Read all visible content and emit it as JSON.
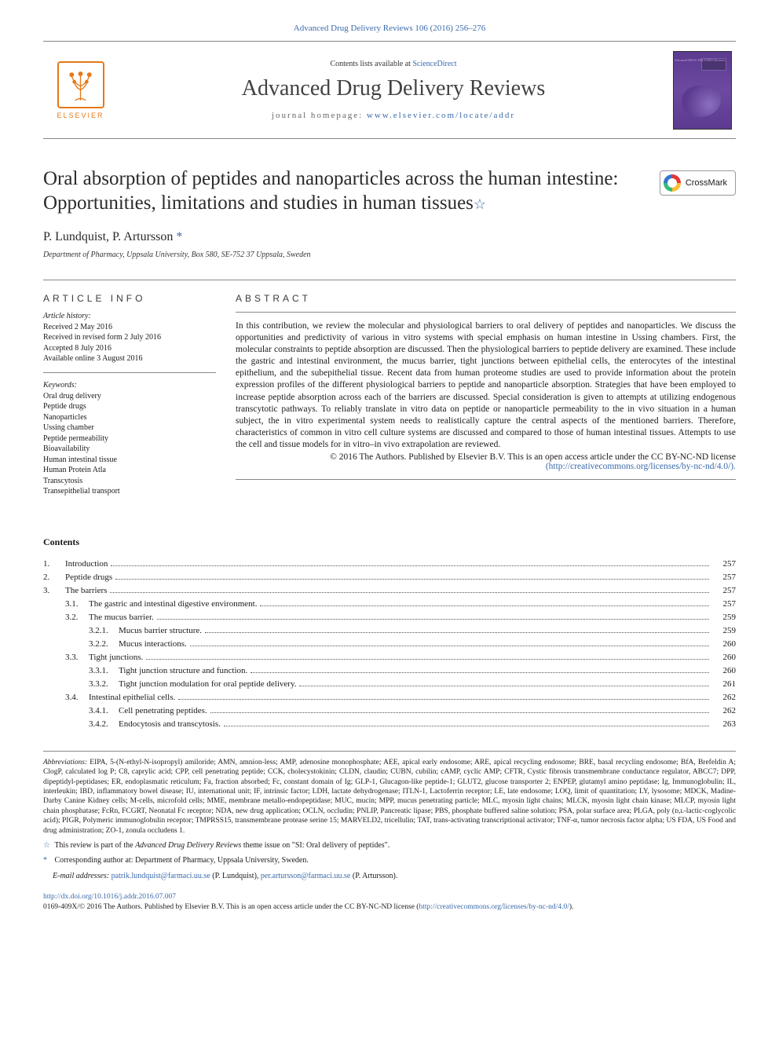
{
  "top_link": {
    "journal": "Advanced Drug Delivery Reviews",
    "vol": "106 (2016) 256–276"
  },
  "banner": {
    "contents_prefix": "Contents lists available at ",
    "sciencedirect": "ScienceDirect",
    "journal_name": "Advanced Drug Delivery Reviews",
    "homepage_prefix": "journal homepage: ",
    "homepage_url": "www.elsevier.com/locate/addr",
    "elsevier_label": "ELSEVIER",
    "cover_label": "Advanced DRUG DELIVERY Reviews"
  },
  "crossmark_label": "CrossMark",
  "title": "Oral absorption of peptides and nanoparticles across the human intestine: Opportunities, limitations and studies in human tissues",
  "title_star": "☆",
  "authors": "P. Lundquist, P. Artursson ",
  "corr_mark": "*",
  "affiliation": "Department of Pharmacy, Uppsala University, Box 580, SE-752 37 Uppsala, Sweden",
  "article_info_head": "ARTICLE INFO",
  "abstract_head": "ABSTRACT",
  "history": {
    "label": "Article history:",
    "lines": [
      "Received 2 May 2016",
      "Received in revised form 2 July 2016",
      "Accepted 8 July 2016",
      "Available online 3 August 2016"
    ]
  },
  "keywords": {
    "label": "Keywords:",
    "items": [
      "Oral drug delivery",
      "Peptide drugs",
      "Nanoparticles",
      "Ussing chamber",
      "Peptide permeability",
      "Bioavailability",
      "Human intestinal tissue",
      "Human Protein Atla",
      "Transcytosis",
      "Transepithelial transport"
    ]
  },
  "abstract": "In this contribution, we review the molecular and physiological barriers to oral delivery of peptides and nanoparticles. We discuss the opportunities and predictivity of various in vitro systems with special emphasis on human intestine in Ussing chambers. First, the molecular constraints to peptide absorption are discussed. Then the physiological barriers to peptide delivery are examined. These include the gastric and intestinal environment, the mucus barrier, tight junctions between epithelial cells, the enterocytes of the intestinal epithelium, and the subepithelial tissue. Recent data from human proteome studies are used to provide information about the protein expression profiles of the different physiological barriers to peptide and nanoparticle absorption. Strategies that have been employed to increase peptide absorption across each of the barriers are discussed. Special consideration is given to attempts at utilizing endogenous transcytotic pathways. To reliably translate in vitro data on peptide or nanoparticle permeability to the in vivo situation in a human subject, the in vitro experimental system needs to realistically capture the central aspects of the mentioned barriers. Therefore, characteristics of common in vitro cell culture systems are discussed and compared to those of human intestinal tissues. Attempts to use the cell and tissue models for in vitro–in vivo extrapolation are reviewed.",
  "copyright": {
    "line1": "© 2016 The Authors. Published by Elsevier B.V. This is an open access article under the CC BY-NC-ND license",
    "license_url": "(http://creativecommons.org/licenses/by-nc-nd/4.0/)."
  },
  "contents_heading": "Contents",
  "toc": [
    {
      "level": 0,
      "num": "1.",
      "title": "Introduction",
      "page": "257"
    },
    {
      "level": 0,
      "num": "2.",
      "title": "Peptide drugs",
      "page": "257"
    },
    {
      "level": 0,
      "num": "3.",
      "title": "The barriers",
      "page": "257"
    },
    {
      "level": 1,
      "num": "3.1.",
      "title": "The gastric and intestinal digestive environment",
      "page": "257"
    },
    {
      "level": 1,
      "num": "3.2.",
      "title": "The mucus barrier",
      "page": "259"
    },
    {
      "level": 2,
      "num": "3.2.1.",
      "title": "Mucus barrier structure",
      "page": "259"
    },
    {
      "level": 2,
      "num": "3.2.2.",
      "title": "Mucus interactions",
      "page": "260"
    },
    {
      "level": 1,
      "num": "3.3.",
      "title": "Tight junctions",
      "page": "260"
    },
    {
      "level": 2,
      "num": "3.3.1.",
      "title": "Tight junction structure and function",
      "page": "260"
    },
    {
      "level": 2,
      "num": "3.3.2.",
      "title": "Tight junction modulation for oral peptide delivery",
      "page": "261"
    },
    {
      "level": 1,
      "num": "3.4.",
      "title": "Intestinal epithelial cells",
      "page": "262"
    },
    {
      "level": 2,
      "num": "3.4.1.",
      "title": "Cell penetrating peptides",
      "page": "262"
    },
    {
      "level": 2,
      "num": "3.4.2.",
      "title": "Endocytosis and transcytosis",
      "page": "263"
    }
  ],
  "abbreviations": {
    "label": "Abbreviations:",
    "text": " EIPA, 5-(N-ethyl-N-isopropyl) amiloride; AMN, amnion-less; AMP, adenosine monophosphate; AEE, apical early endosome; ARE, apical recycling endosome; BRE, basal recycling endosome; BfA, Brefeldin A; ClogP, calculated log P; C8, caprylic acid; CPP, cell penetrating peptide; CCK, cholecystokinin; CLDN, claudin; CUBN, cubilin; cAMP, cyclic AMP; CFTR, Cystic fibrosis transmembrane conductance regulator, ABCC7; DPP, dipeptidyl-peptidases; ER, endoplasmatic reticulum; Fa, fraction absorbed; Fc, constant domain of Ig; GLP-1, Glucagon-like peptide-1; GLUT2, glucose transporter 2; ENPEP, glutamyl amino peptidase; Ig, Immunoglobulin; IL, interleukin; IBD, inflammatory bowel disease; IU, international unit; IF, intrinsic factor; LDH, lactate dehydrogenase; ITLN-1, Lactoferrin receptor; LE, late endosome; LOQ, limit of quantitation; LY, lysosome; MDCK, Madine-Darby Canine Kidney cells; M-cells, microfold cells; MME, membrane metallo-endopeptidase; MUC, mucin; MPP, mucus penetrating particle; MLC, myosin light chains; MLCK, myosin light chain kinase; MLCP, myosin light chain phosphatase; FcRn, FCGRT, Neonatal Fc receptor; NDA, new drug application; OCLN, occludin; PNLIP, Pancreatic lipase; PBS, phosphate buffered saline solution; PSA, polar surface area; PLGA, poly (ᴅ,ʟ-lactic-coglycolic acid); PIGR, Polymeric immunoglobulin receptor; TMPRSS15, transmembrane protease serine 15; MARVELD2, tricellulin; TAT, trans-activating transcriptional activator; TNF-α, tumor necrosis factor alpha; US FDA, US Food and drug administration; ZO-1, zonula occludens 1."
  },
  "footnotes": {
    "star": {
      "sym": "☆",
      "text_pre": "This review is part of the ",
      "text_em": "Advanced Drug Delivery Reviews",
      "text_post": " theme issue on \"SI: Oral delivery of peptides\"."
    },
    "corr": {
      "sym": "*",
      "text": "Corresponding author at: Department of Pharmacy, Uppsala University, Sweden."
    },
    "email": {
      "label": "E-mail addresses: ",
      "e1": "patrik.lundquist@farmaci.uu.se",
      "n1": " (P. Lundquist), ",
      "e2": "per.artursson@farmaci.uu.se",
      "n2": " (P. Artursson)."
    }
  },
  "doi": {
    "url": "http://dx.doi.org/10.1016/j.addr.2016.07.007",
    "issn": "0169-409X/© 2016 The Authors. Published by Elsevier B.V. This is an open access article under the CC BY-NC-ND license (",
    "license_url": "http://creativecommons.org/licenses/by-nc-nd/4.0/",
    "tail": ")."
  },
  "styles": {
    "link_color": "#3a6aab",
    "elsevier_orange": "#e67817",
    "title_fontsize": 25,
    "journal_fontsize": 28,
    "body_fontsize": 12,
    "abstract_fontsize": 11.5,
    "footnote_fontsize": 10,
    "cover_bg": "#5b3a8f"
  }
}
